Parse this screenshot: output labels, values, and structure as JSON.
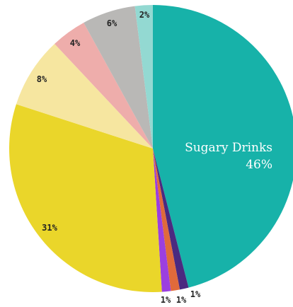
{
  "chart_data": {
    "type": "pie",
    "start": "12 o'clock",
    "direction": "clockwise",
    "slices": [
      {
        "label": "Sugary Drinks",
        "value": 46,
        "value_label": "46%",
        "color": "#17b2a9"
      },
      {
        "label": "",
        "value": 1,
        "value_label": "1%",
        "color": "#4b2a80"
      },
      {
        "label": "",
        "value": 1,
        "value_label": "1%",
        "color": "#e06a3b"
      },
      {
        "label": "",
        "value": 1,
        "value_label": "1%",
        "color": "#9b3fe0"
      },
      {
        "label": "",
        "value": 31,
        "value_label": "31%",
        "color": "#ead62a"
      },
      {
        "label": "",
        "value": 8,
        "value_label": "8%",
        "color": "#f6e6a0"
      },
      {
        "label": "",
        "value": 4,
        "value_label": "4%",
        "color": "#eeadab"
      },
      {
        "label": "",
        "value": 6,
        "value_label": "6%",
        "color": "#b9b8b6"
      },
      {
        "label": "",
        "value": 2,
        "value_label": "2%",
        "color": "#93d9d2"
      }
    ]
  }
}
